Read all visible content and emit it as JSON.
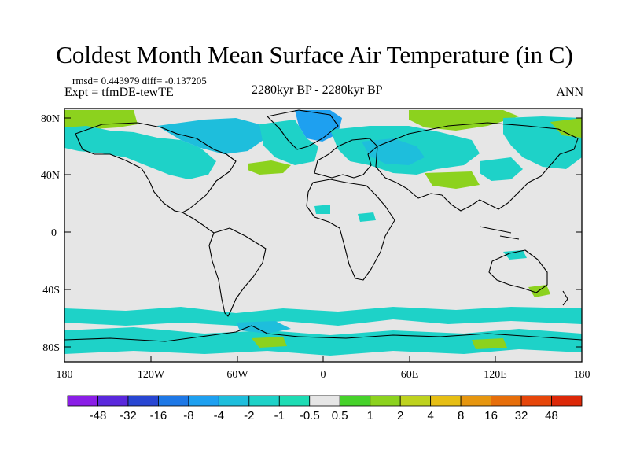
{
  "title": "Coldest Month Mean Surface Air Temperature (in C)",
  "stats_line": "rmsd= 0.443979 diff= -0.137205",
  "expt_line": "Expt = tfmDE-tewTE",
  "period": "2280kyr BP - 2280kyr BP",
  "season": "ANN",
  "lat_ticks": [
    "80N",
    "40N",
    "0",
    "40S",
    "80S"
  ],
  "lon_ticks": [
    "180",
    "120W",
    "60W",
    "0",
    "60E",
    "120E",
    "180"
  ],
  "colorbar": {
    "labels": [
      "-48",
      "-32",
      "-16",
      "-8",
      "-4",
      "-2",
      "-1",
      "-0.5",
      "0.5",
      "1",
      "2",
      "4",
      "8",
      "16",
      "32",
      "48"
    ],
    "colors": [
      "#8a1ee6",
      "#5a28dc",
      "#2846d2",
      "#1e78e6",
      "#1ea0f0",
      "#1ebedc",
      "#1ed2c8",
      "#1edcb4",
      "#e6e6e6",
      "#46d22a",
      "#8cd21e",
      "#bed21e",
      "#e6be14",
      "#e6960f",
      "#e66e0a",
      "#e6460a",
      "#dc2808"
    ]
  },
  "field_colors": {
    "neutral": "#e6e6e6",
    "teal": "#1ed2c8",
    "cyan": "#1ebedc",
    "lightblue": "#1ea0f0",
    "green": "#8cd21e"
  }
}
